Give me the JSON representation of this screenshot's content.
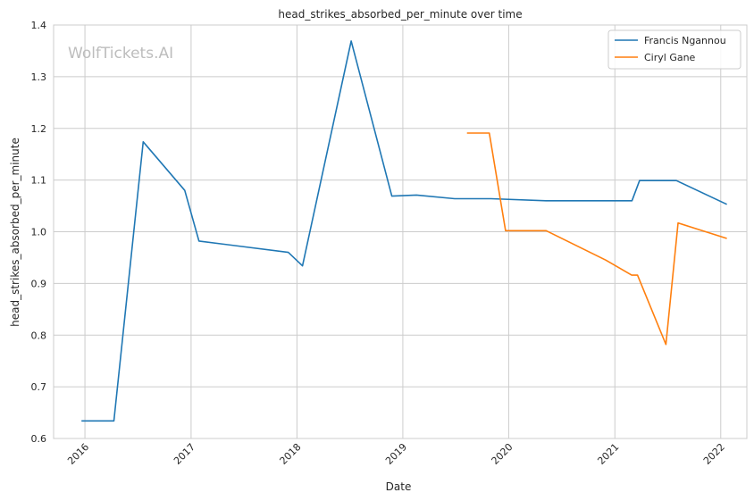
{
  "watermark": "WolfTickets.AI",
  "chart_data": {
    "type": "line",
    "title": "head_strikes_absorbed_per_minute over time",
    "xlabel": "Date",
    "ylabel": "head_strikes_absorbed_per_minute",
    "xlim": [
      "2015-09-15",
      "2022-04-01"
    ],
    "ylim": [
      0.6,
      1.4
    ],
    "x_ticks": [
      "2016",
      "2017",
      "2018",
      "2019",
      "2020",
      "2021",
      "2022"
    ],
    "y_ticks": [
      "0.6",
      "0.7",
      "0.8",
      "0.9",
      "1.0",
      "1.1",
      "1.2",
      "1.3",
      "1.4"
    ],
    "grid": true,
    "legend_position": "top-right",
    "series": [
      {
        "name": "Francis Ngannou",
        "color": "#1f77b4",
        "points": [
          [
            "2015-12-20",
            0.634
          ],
          [
            "2016-04-10",
            0.634
          ],
          [
            "2016-07-20",
            1.174
          ],
          [
            "2016-12-10",
            1.08
          ],
          [
            "2017-01-28",
            0.982
          ],
          [
            "2017-12-02",
            0.96
          ],
          [
            "2018-01-20",
            0.934
          ],
          [
            "2018-07-07",
            1.369
          ],
          [
            "2018-11-24",
            1.069
          ],
          [
            "2019-02-17",
            1.071
          ],
          [
            "2019-06-29",
            1.064
          ],
          [
            "2019-11-01",
            1.064
          ],
          [
            "2020-05-09",
            1.06
          ],
          [
            "2021-03-01",
            1.06
          ],
          [
            "2021-03-27",
            1.099
          ],
          [
            "2021-08-01",
            1.099
          ],
          [
            "2022-01-22",
            1.053
          ]
        ]
      },
      {
        "name": "Ciryl Gane",
        "color": "#ff7f0e",
        "points": [
          [
            "2019-08-10",
            1.191
          ],
          [
            "2019-10-26",
            1.191
          ],
          [
            "2019-12-21",
            1.002
          ],
          [
            "2020-05-09",
            1.002
          ],
          [
            "2020-12-01",
            0.945
          ],
          [
            "2021-02-28",
            0.916
          ],
          [
            "2021-03-20",
            0.916
          ],
          [
            "2021-06-26",
            0.782
          ],
          [
            "2021-08-07",
            1.017
          ],
          [
            "2022-01-22",
            0.987
          ]
        ]
      }
    ]
  }
}
